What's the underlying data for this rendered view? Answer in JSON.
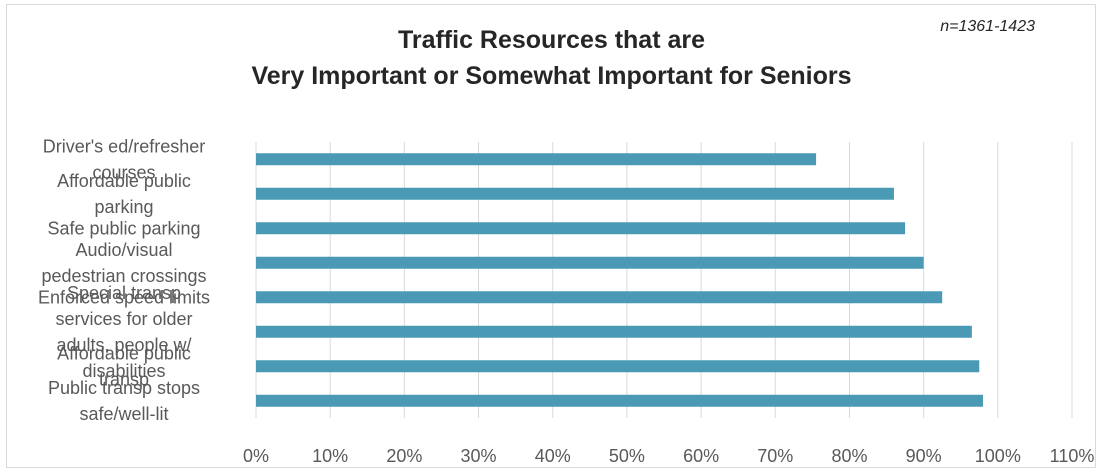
{
  "chart_data": {
    "type": "bar",
    "orientation": "horizontal",
    "title_line1": "Traffic Resources that are",
    "title_line2": "Very Important or Somewhat Important for Seniors",
    "note": "n=1361-1423",
    "categories": [
      "Driver's ed/refresher courses",
      "Affordable public parking",
      "Safe public parking",
      "Audio/visual pedestrian crossings",
      "Enforced speed limits",
      "Special transp services for older adults, people w/ disabilities",
      "Affordable public transp",
      "Public transp stops safe/well-lit"
    ],
    "values": [
      75.5,
      86,
      87.5,
      90,
      92.5,
      96.5,
      97.5,
      98
    ],
    "xticks": [
      "0%",
      "10%",
      "20%",
      "30%",
      "40%",
      "50%",
      "60%",
      "70%",
      "80%",
      "90%",
      "100%",
      "110%"
    ],
    "xlim": [
      0,
      110
    ],
    "grid": true,
    "bar_color": "#4a9ab6"
  }
}
